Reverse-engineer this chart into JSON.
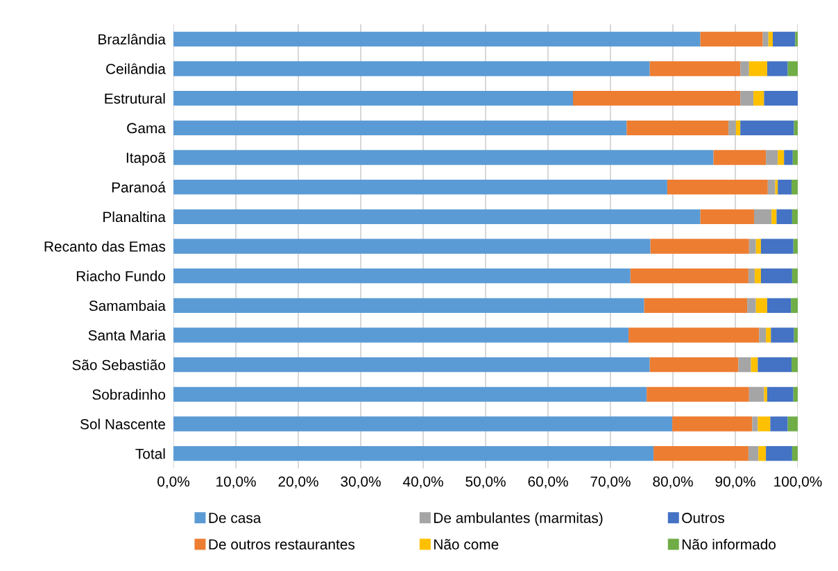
{
  "chart_data": {
    "type": "bar",
    "orientation": "horizontal",
    "stacked": true,
    "grid": "x",
    "legend": "bottom",
    "categories": [
      "Brazlândia",
      "Ceilândia",
      "Estrutural",
      "Gama",
      "Itapoã",
      "Paranoá",
      "Planaltina",
      "Recanto das Emas",
      "Riacho Fundo",
      "Samambaia",
      "Santa Maria",
      "São Sebastião",
      "Sobradinho",
      "Sol Nascente",
      "Total"
    ],
    "xlim": [
      0,
      100
    ],
    "xticks": [
      {
        "value": 0,
        "label": "0,0%"
      },
      {
        "value": 10,
        "label": "10,0%"
      },
      {
        "value": 20,
        "label": "20,0%"
      },
      {
        "value": 30,
        "label": "30,0%"
      },
      {
        "value": 40,
        "label": "40,0%"
      },
      {
        "value": 50,
        "label": "50,0%"
      },
      {
        "value": 60,
        "label": "60,0%"
      },
      {
        "value": 70,
        "label": "70,0%"
      },
      {
        "value": 80,
        "label": "80,0%"
      },
      {
        "value": 90,
        "label": "90,0%"
      },
      {
        "value": 100,
        "label": "100,0%"
      }
    ],
    "series": [
      {
        "name": "De casa",
        "color": "#5b9bd5",
        "values": [
          84.4,
          76.3,
          64.0,
          72.6,
          86.5,
          79.1,
          84.4,
          76.4,
          73.2,
          75.4,
          72.9,
          76.3,
          75.8,
          79.9,
          76.9
        ]
      },
      {
        "name": "De outros restaurantes",
        "color": "#ed7d31",
        "values": [
          10.0,
          14.5,
          26.8,
          16.3,
          8.4,
          16.1,
          8.6,
          15.8,
          18.9,
          16.5,
          20.9,
          14.2,
          16.4,
          12.8,
          15.2
        ]
      },
      {
        "name": "De ambulantes (marmitas)",
        "color": "#a5a5a5",
        "values": [
          0.9,
          1.4,
          2.1,
          1.2,
          1.9,
          1.2,
          2.8,
          1.1,
          1.0,
          1.4,
          1.1,
          2.0,
          2.4,
          0.9,
          1.6
        ]
      },
      {
        "name": "Não come",
        "color": "#ffc000",
        "values": [
          0.7,
          2.9,
          1.7,
          0.7,
          1.0,
          0.4,
          0.8,
          0.8,
          1.0,
          1.8,
          0.8,
          1.1,
          0.5,
          2.0,
          1.2
        ]
      },
      {
        "name": "Outros",
        "color": "#4472c4",
        "values": [
          3.6,
          3.3,
          5.4,
          8.6,
          1.4,
          2.2,
          2.5,
          5.2,
          5.0,
          3.8,
          3.7,
          5.4,
          4.2,
          2.8,
          4.2
        ]
      },
      {
        "name": "Não informado",
        "color": "#70ad47",
        "values": [
          0.4,
          1.6,
          0.0,
          0.6,
          0.8,
          1.0,
          0.9,
          0.7,
          0.9,
          1.1,
          0.6,
          1.0,
          0.7,
          1.6,
          0.9
        ]
      }
    ]
  }
}
